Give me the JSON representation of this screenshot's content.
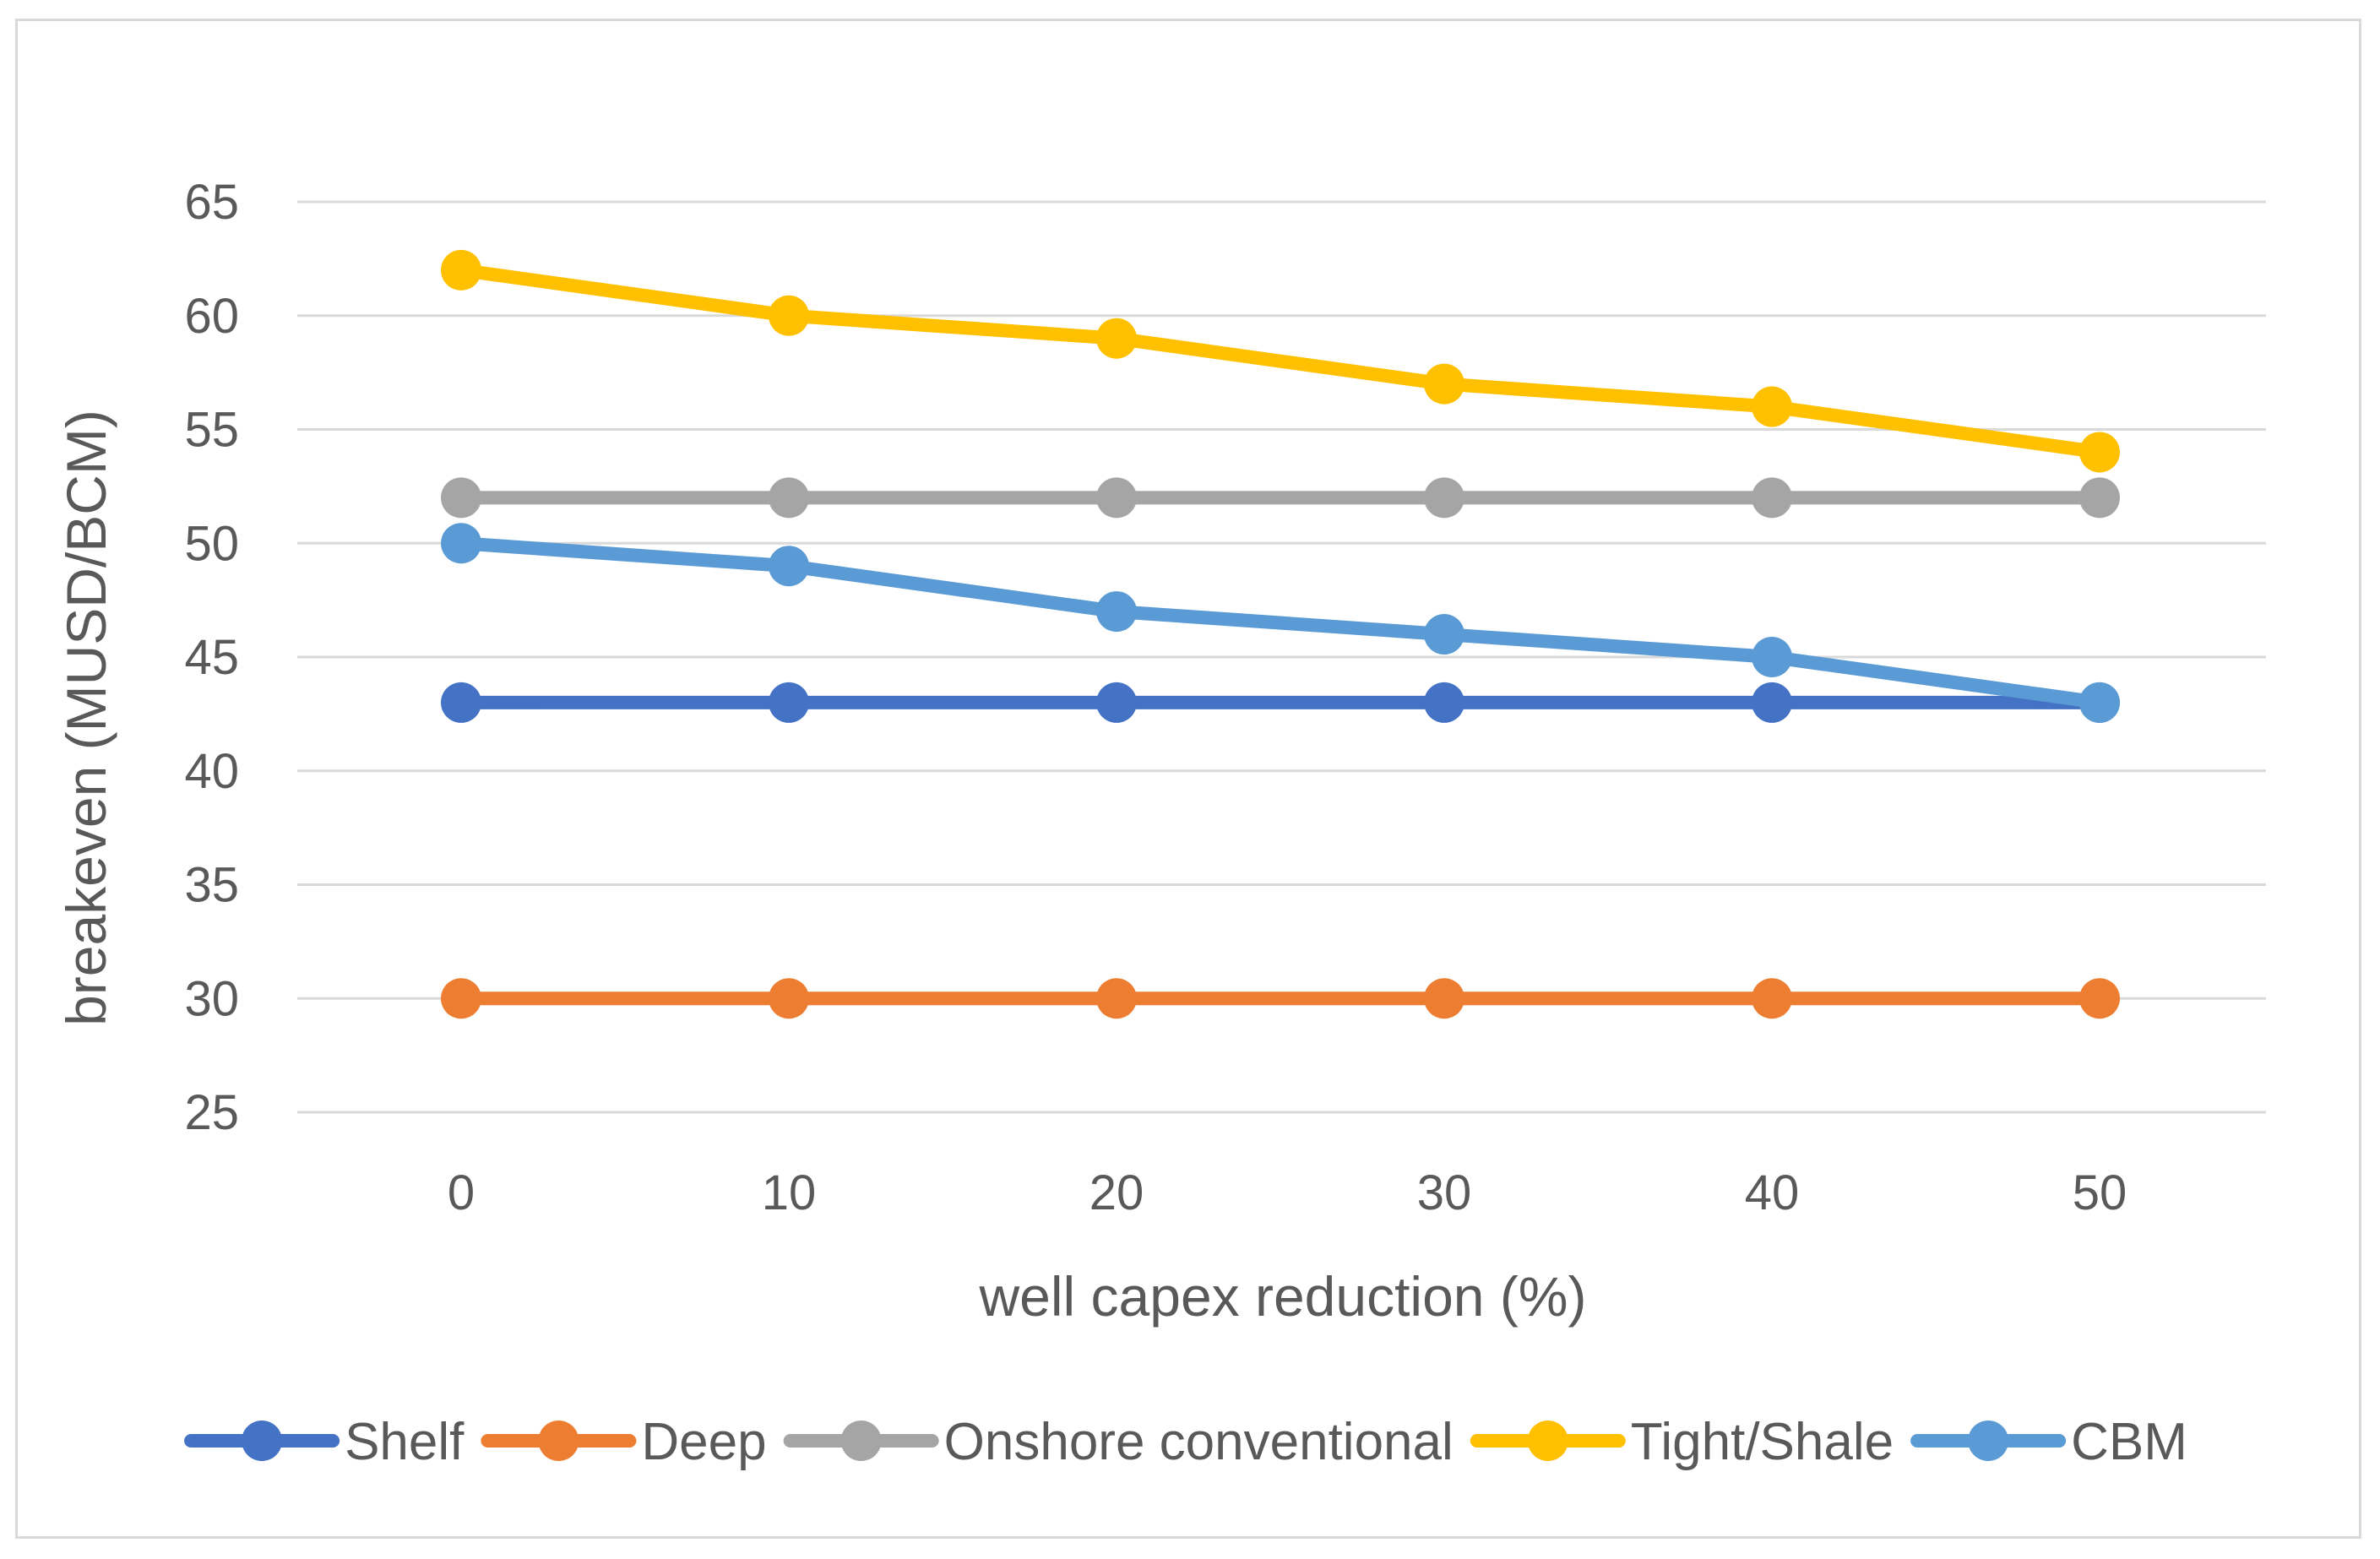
{
  "chart_data": {
    "type": "line",
    "title": "",
    "xlabel": "well capex reduction (%)",
    "ylabel": "breakeven (MUSD/BCM)",
    "categories": [
      "0",
      "10",
      "20",
      "30",
      "40",
      "50"
    ],
    "yticks": [
      "25",
      "30",
      "35",
      "40",
      "45",
      "50",
      "55",
      "60",
      "65"
    ],
    "ylim": [
      25,
      65
    ],
    "grid": "horizontal",
    "legend_position": "bottom",
    "series": [
      {
        "name": "Shelf",
        "color": "#4472c4",
        "values": [
          43,
          43,
          43,
          43,
          43,
          43
        ]
      },
      {
        "name": "Deep",
        "color": "#ed7d31",
        "values": [
          30,
          30,
          30,
          30,
          30,
          30
        ]
      },
      {
        "name": "Onshore conventional",
        "color": "#a5a5a5",
        "values": [
          52,
          52,
          52,
          52,
          52,
          52
        ]
      },
      {
        "name": "Tight/Shale",
        "color": "#ffc000",
        "values": [
          62,
          60,
          59,
          57,
          56,
          54
        ]
      },
      {
        "name": "CBM",
        "color": "#5b9bd5",
        "values": [
          50,
          49,
          47,
          46,
          45,
          43
        ]
      }
    ]
  }
}
